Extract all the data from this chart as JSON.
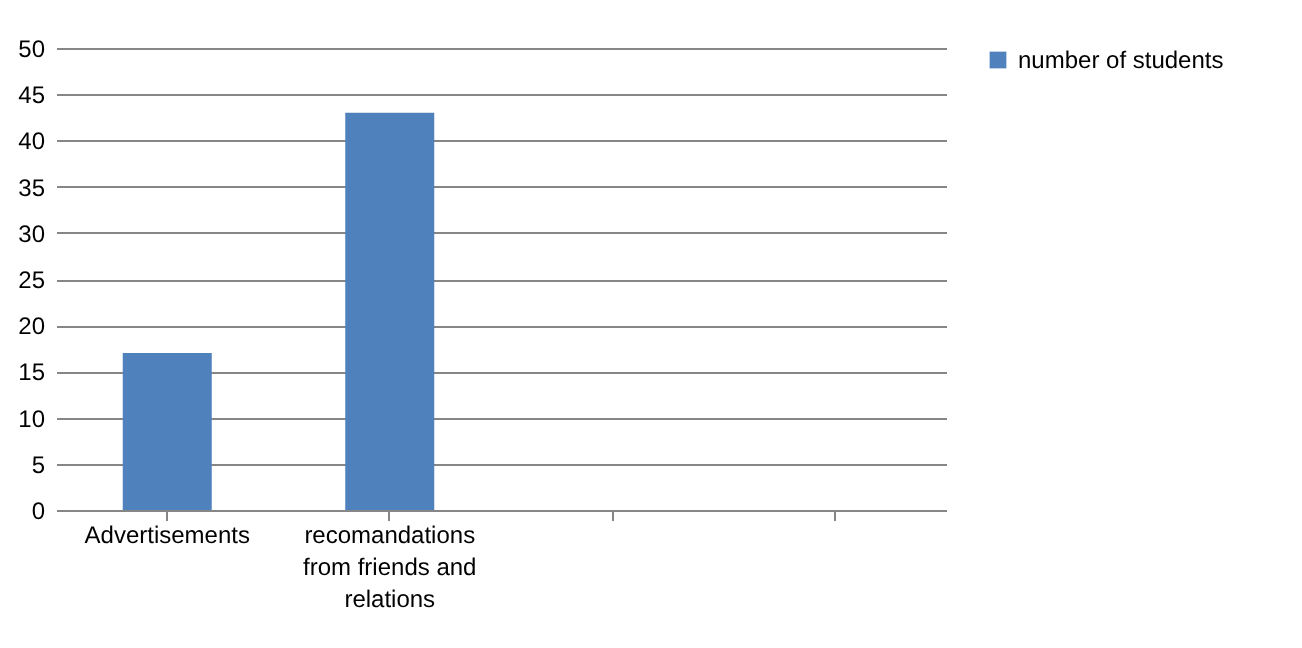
{
  "chart_data": {
    "type": "bar",
    "categories": [
      "Advertisements",
      "recomandations from friends and relations",
      null,
      null
    ],
    "series": [
      {
        "name": "number of students",
        "color": "#4f81bd",
        "values": [
          17,
          43,
          null,
          null
        ]
      }
    ],
    "ylim": [
      0,
      50
    ],
    "yticks": [
      0,
      5,
      10,
      15,
      20,
      25,
      30,
      35,
      40,
      45,
      50
    ],
    "grid": "y",
    "legend": "right"
  }
}
